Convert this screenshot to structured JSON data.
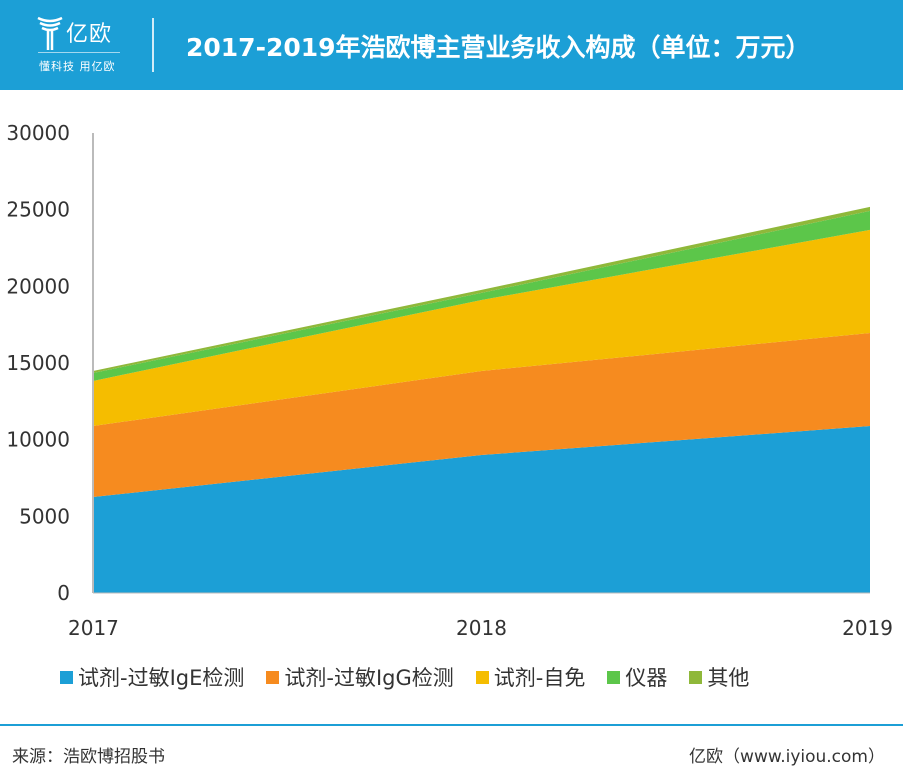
{
  "header": {
    "logo_name": "亿欧",
    "logo_slogan": "懂科技 用亿欧",
    "title": "2017-2019年浩欧博主营业务收入构成（单位：万元）"
  },
  "chart_data": {
    "type": "area",
    "stacked": true,
    "title": "2017-2019年浩欧博主营业务收入构成（单位：万元）",
    "x": [
      "2017",
      "2018",
      "2019"
    ],
    "ylim": [
      0,
      30000
    ],
    "yticks": [
      0,
      5000,
      10000,
      15000,
      20000,
      25000,
      30000
    ],
    "grid": false,
    "legend": "bottom",
    "series": [
      {
        "name": "试剂-过敏IgE检测",
        "color": "#1c9fd6",
        "values": [
          6260,
          9000,
          10890
        ]
      },
      {
        "name": "试剂-过敏IgG检测",
        "color": "#f68b1f",
        "values": [
          4630,
          5480,
          6070
        ]
      },
      {
        "name": "试剂-自免",
        "color": "#f5bd00",
        "values": [
          2940,
          4630,
          6720
        ]
      },
      {
        "name": "仪器",
        "color": "#5cc64a",
        "values": [
          520,
          460,
          1240
        ]
      },
      {
        "name": "其他",
        "color": "#8fb83a",
        "values": [
          130,
          200,
          260
        ]
      }
    ]
  },
  "footer": {
    "source": "来源：浩欧博招股书",
    "credit": "亿欧（www.iyiou.com）"
  }
}
